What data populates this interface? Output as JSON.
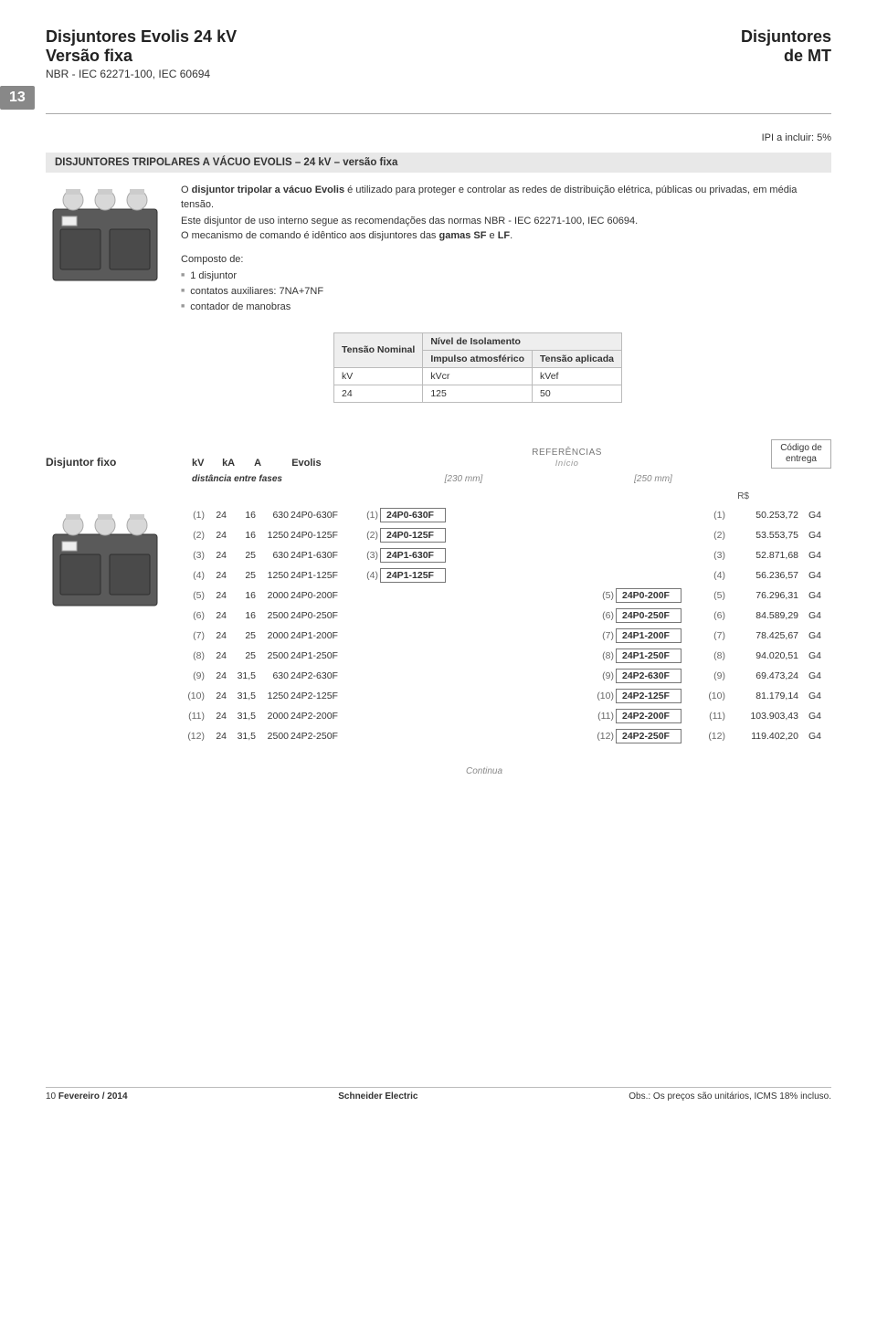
{
  "header": {
    "title1": "Disjuntores Evolis 24 kV",
    "title2": "Versão fixa",
    "subtitle": "NBR - IEC 62271-100, IEC 60694",
    "right1": "Disjuntores",
    "right2": "de MT"
  },
  "tab": "13",
  "ipi": "IPI a incluir: 5%",
  "section_title": "DISJUNTORES TRIPOLARES A VÁCUO EVOLIS – 24 kV – versão fixa",
  "intro": {
    "p1_a": "O ",
    "p1_b": "disjuntor tripolar a vácuo Evolis",
    "p1_c": " é utilizado para proteger e controlar as redes de distribuição elétrica, públicas ou privadas, em média tensão.",
    "p2_a": "Este disjuntor de uso interno segue as recomendações das normas NBR - IEC 62271-100, IEC 60694.",
    "p2_b": "O mecanismo de comando é idêntico aos disjuntores das ",
    "p2_c": "gamas SF",
    "p2_d": " e ",
    "p2_e": "LF",
    "p2_f": ".",
    "comp": "Composto de:",
    "li1": "1 disjuntor",
    "li2": "contatos auxiliares: 7NA+7NF",
    "li3": "contador de manobras"
  },
  "small_table": {
    "h1": "Tensão Nominal",
    "h2": "Nível de Isolamento",
    "h2a": "Impulso atmosférico",
    "h2b": "Tensão aplicada",
    "r_kv": "kV",
    "r_kvcr": "kVcr",
    "r_kvef": "kVef",
    "v_kv": "24",
    "v_kvcr": "125",
    "v_kvef": "50"
  },
  "columns": {
    "disj": "Disjuntor fixo",
    "kv": "kV",
    "ka": "kA",
    "a": "A",
    "evolis": "Evolis",
    "ref": "REFERÊNCIAS",
    "inicio": "Início",
    "codigo1": "Código de",
    "codigo2": "entrega",
    "dist": "distância entre fases",
    "mm230": "[230 mm]",
    "mm250": "[250 mm]",
    "rs": "R$"
  },
  "rows": [
    {
      "idx": "(1)",
      "kv": "24",
      "ka": "16",
      "a": "630",
      "code": "24P0-630F",
      "idx2": "(1)",
      "ref230": "24P0-630F",
      "ref250": "",
      "idx3": "",
      "idx4": "(1)",
      "price": "50.253,72",
      "del": "G4"
    },
    {
      "idx": "(2)",
      "kv": "24",
      "ka": "16",
      "a": "1250",
      "code": "24P0-125F",
      "idx2": "(2)",
      "ref230": "24P0-125F",
      "ref250": "",
      "idx3": "",
      "idx4": "(2)",
      "price": "53.553,75",
      "del": "G4"
    },
    {
      "idx": "(3)",
      "kv": "24",
      "ka": "25",
      "a": "630",
      "code": "24P1-630F",
      "idx2": "(3)",
      "ref230": "24P1-630F",
      "ref250": "",
      "idx3": "",
      "idx4": "(3)",
      "price": "52.871,68",
      "del": "G4"
    },
    {
      "idx": "(4)",
      "kv": "24",
      "ka": "25",
      "a": "1250",
      "code": "24P1-125F",
      "idx2": "(4)",
      "ref230": "24P1-125F",
      "ref250": "",
      "idx3": "",
      "idx4": "(4)",
      "price": "56.236,57",
      "del": "G4"
    },
    {
      "idx": "(5)",
      "kv": "24",
      "ka": "16",
      "a": "2000",
      "code": "24P0-200F",
      "idx2": "",
      "ref230": "",
      "ref250": "24P0-200F",
      "idx3": "(5)",
      "idx4": "(5)",
      "price": "76.296,31",
      "del": "G4"
    },
    {
      "idx": "(6)",
      "kv": "24",
      "ka": "16",
      "a": "2500",
      "code": "24P0-250F",
      "idx2": "",
      "ref230": "",
      "ref250": "24P0-250F",
      "idx3": "(6)",
      "idx4": "(6)",
      "price": "84.589,29",
      "del": "G4"
    },
    {
      "idx": "(7)",
      "kv": "24",
      "ka": "25",
      "a": "2000",
      "code": "24P1-200F",
      "idx2": "",
      "ref230": "",
      "ref250": "24P1-200F",
      "idx3": "(7)",
      "idx4": "(7)",
      "price": "78.425,67",
      "del": "G4"
    },
    {
      "idx": "(8)",
      "kv": "24",
      "ka": "25",
      "a": "2500",
      "code": "24P1-250F",
      "idx2": "",
      "ref230": "",
      "ref250": "24P1-250F",
      "idx3": "(8)",
      "idx4": "(8)",
      "price": "94.020,51",
      "del": "G4"
    },
    {
      "idx": "(9)",
      "kv": "24",
      "ka": "31,5",
      "a": "630",
      "code": "24P2-630F",
      "idx2": "",
      "ref230": "",
      "ref250": "24P2-630F",
      "idx3": "(9)",
      "idx4": "(9)",
      "price": "69.473,24",
      "del": "G4"
    },
    {
      "idx": "(10)",
      "kv": "24",
      "ka": "31,5",
      "a": "1250",
      "code": "24P2-125F",
      "idx2": "",
      "ref230": "",
      "ref250": "24P2-125F",
      "idx3": "(10)",
      "idx4": "(10)",
      "price": "81.179,14",
      "del": "G4"
    },
    {
      "idx": "(11)",
      "kv": "24",
      "ka": "31,5",
      "a": "2000",
      "code": "24P2-200F",
      "idx2": "",
      "ref230": "",
      "ref250": "24P2-200F",
      "idx3": "(11)",
      "idx4": "(11)",
      "price": "103.903,43",
      "del": "G4"
    },
    {
      "idx": "(12)",
      "kv": "24",
      "ka": "31,5",
      "a": "2500",
      "code": "24P2-250F",
      "idx2": "",
      "ref230": "",
      "ref250": "24P2-250F",
      "idx3": "(12)",
      "idx4": "(12)",
      "price": "119.402,20",
      "del": "G4"
    }
  ],
  "continua": "Continua",
  "footer": {
    "page": "10",
    "date": "Fevereiro / 2014",
    "center": "Schneider Electric",
    "obs": "Obs.: Os preços são unitários, ICMS 18% incluso."
  }
}
